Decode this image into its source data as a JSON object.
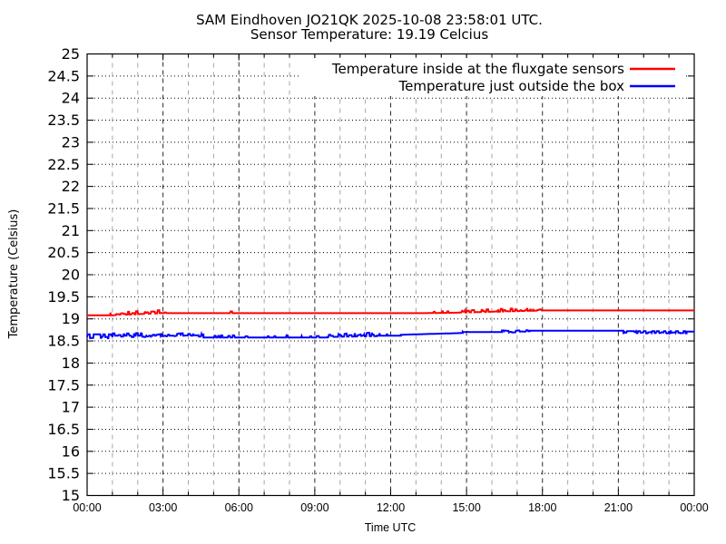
{
  "page": {
    "background": "#ffffff"
  },
  "chart_data": {
    "type": "line",
    "title": "SAM Eindhoven JO21QK 2025-10-08 23:58:01 UTC.",
    "subtitle": "Sensor Temperature: 19.19 Celcius",
    "xlabel": "Time UTC",
    "ylabel": "Temperature (Celsius)",
    "xlim_hours": [
      0,
      24
    ],
    "ylim": [
      15,
      25
    ],
    "y_tick_step": 0.5,
    "x_major_step_hours": 3,
    "x_minor_step_hours": 1,
    "x_tick_labels": [
      "00:00",
      "03:00",
      "06:00",
      "09:00",
      "12:00",
      "15:00",
      "18:00",
      "21:00",
      "00:00"
    ],
    "grid": {
      "horizontal_style": "dotted",
      "horizontal_color": "#000000",
      "vertical_major_color": "#2a2a2a",
      "vertical_minor_color": "#a6a6a6",
      "border_color": "#000000"
    },
    "legend": {
      "position": "top-right-inside",
      "opaque": true,
      "entries": [
        {
          "label": "Temperature inside at the fluxgate sensors",
          "color": "#ff0000"
        },
        {
          "label": "Temperature just outside the box",
          "color": "#0000ff"
        }
      ]
    },
    "segment_format": "[hour_start, hour_end, temp_start_C, temp_end_C, noise_amplitude_C, noise_bias]",
    "series": [
      {
        "name": "Temperature inside at the fluxgate sensors",
        "color": "#ff0000",
        "seed": 1234,
        "segments": [
          [
            0.0,
            0.92,
            19.08,
            19.08,
            0,
            "none"
          ],
          [
            0.92,
            2.95,
            19.08,
            19.13,
            0.07,
            "up"
          ],
          [
            2.95,
            3.2,
            19.13,
            19.13,
            0.05,
            "up"
          ],
          [
            3.2,
            5.65,
            19.13,
            19.13,
            0,
            "none"
          ],
          [
            5.65,
            6.05,
            19.13,
            19.13,
            0.05,
            "sparse"
          ],
          [
            6.05,
            13.4,
            19.13,
            19.13,
            0,
            "none"
          ],
          [
            13.4,
            14.6,
            19.13,
            19.14,
            0.05,
            "sparse"
          ],
          [
            14.6,
            18.0,
            19.14,
            19.19,
            0.06,
            "up"
          ],
          [
            18.0,
            24.0,
            19.19,
            19.19,
            0,
            "none"
          ]
        ]
      },
      {
        "name": "Temperature just outside the box",
        "color": "#0000ff",
        "seed": 7777,
        "segments": [
          [
            0.0,
            1.0,
            18.65,
            18.65,
            0.09,
            "down"
          ],
          [
            1.0,
            4.6,
            18.62,
            18.62,
            0.08,
            "both"
          ],
          [
            4.6,
            9.5,
            18.58,
            18.58,
            0.05,
            "sparse"
          ],
          [
            9.5,
            11.45,
            18.59,
            18.61,
            0.08,
            "up"
          ],
          [
            11.45,
            12.4,
            18.62,
            18.62,
            0.04,
            "sparse"
          ],
          [
            12.4,
            14.85,
            18.64,
            18.68,
            0.01,
            "none"
          ],
          [
            14.85,
            16.4,
            18.7,
            18.7,
            0.01,
            "sparse"
          ],
          [
            16.4,
            17.5,
            18.7,
            18.72,
            0.05,
            "both"
          ],
          [
            17.5,
            21.2,
            18.73,
            18.73,
            0,
            "none"
          ],
          [
            21.2,
            23.7,
            18.72,
            18.72,
            0.05,
            "down"
          ],
          [
            23.7,
            24.0,
            18.71,
            18.71,
            0.01,
            "none"
          ]
        ]
      }
    ]
  }
}
